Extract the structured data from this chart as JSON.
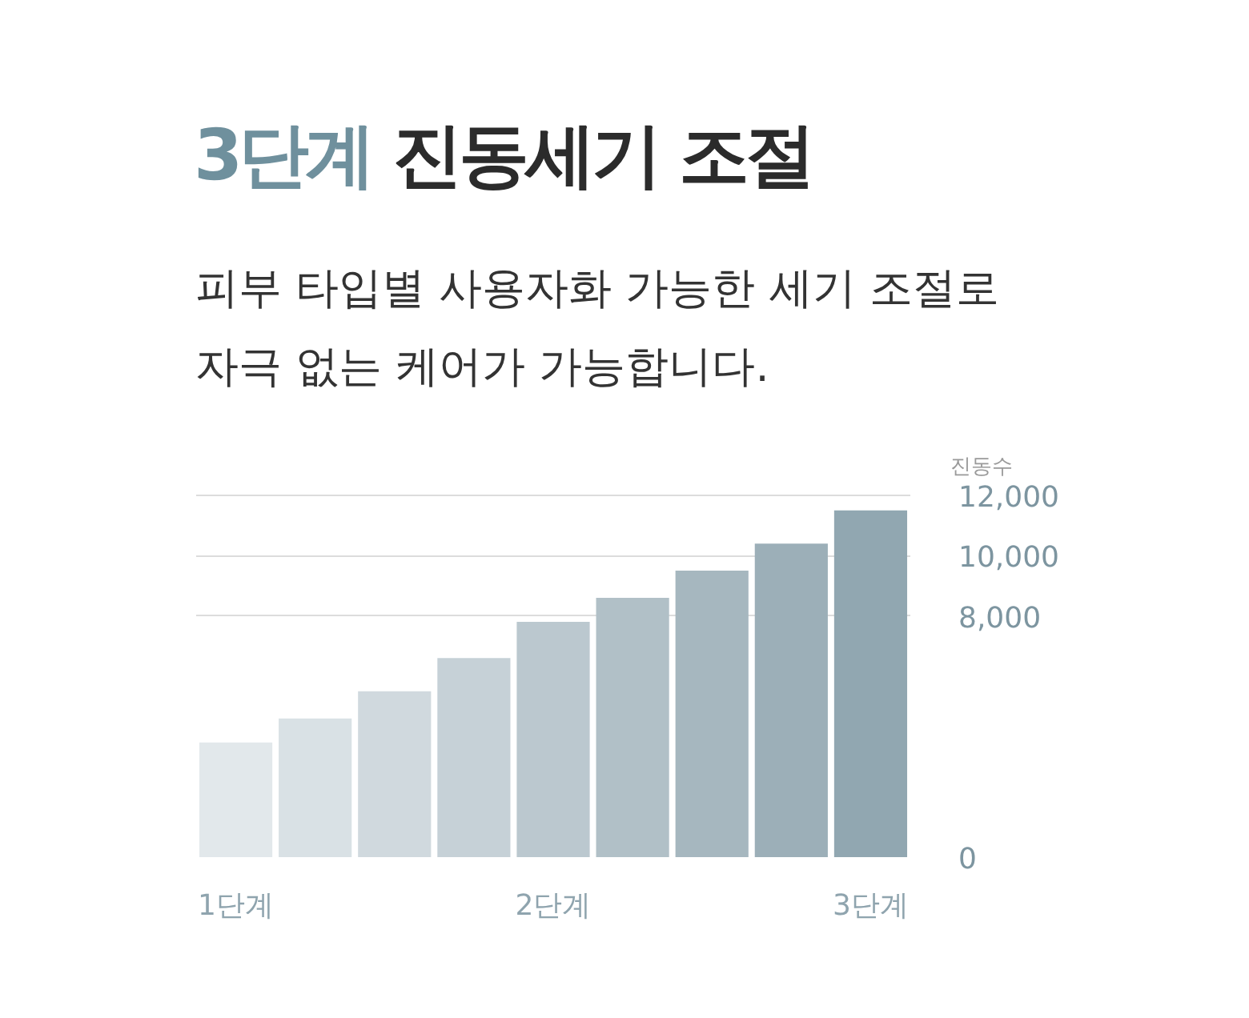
{
  "chart_data": {
    "type": "bar",
    "title": "3단계 진동세기 조절",
    "subtitle": "피부 타입별 사용자화 가능한 세기 조절로\n자극 없는 케어가 가능합니다.",
    "ylabel": "진동수",
    "categories": [
      "1단계",
      null,
      null,
      null,
      "2단계",
      null,
      null,
      null,
      "3단계"
    ],
    "values": [
      3800,
      4600,
      5500,
      6600,
      7800,
      8600,
      9500,
      10400,
      11500
    ],
    "colors": [
      "#e2e8eb",
      "#d9e1e5",
      "#d0d9de",
      "#c6d1d7",
      "#bbc8cf",
      "#b1c0c7",
      "#a6b7bf",
      "#9cafb8",
      "#91a7b1"
    ],
    "ylim": [
      0,
      12050
    ],
    "yticks": [
      0,
      {
        "value": 8000,
        "label": "8,000"
      },
      {
        "value": 10000,
        "label": "10,000"
      },
      {
        "value": 12000,
        "label": "12,000"
      }
    ],
    "grid": "y"
  }
}
